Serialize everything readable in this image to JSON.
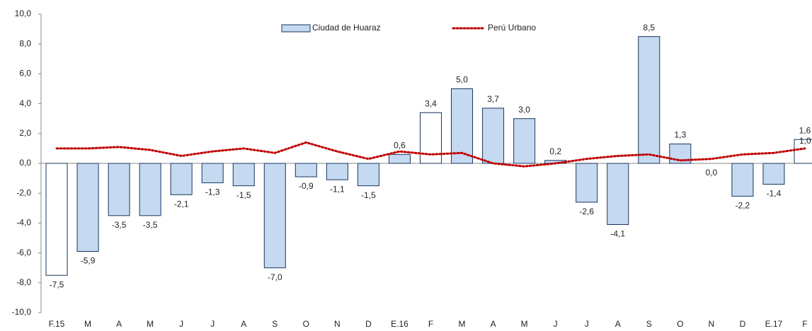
{
  "chart_data": {
    "type": "bar-line",
    "categories": [
      "F.15",
      "M",
      "A",
      "M",
      "J",
      "J",
      "A",
      "S",
      "O",
      "N",
      "D",
      "E.16",
      "F",
      "M",
      "A",
      "M",
      "J",
      "J",
      "A",
      "S",
      "O",
      "N",
      "D",
      "E.17",
      "F"
    ],
    "series": [
      {
        "name": "Ciudad de Huaraz",
        "type": "bar",
        "color": "#c5d9f1",
        "bar_fills": [
          "#ffffff",
          "#c5d9f1",
          "#c5d9f1",
          "#c5d9f1",
          "#c5d9f1",
          "#c5d9f1",
          "#c5d9f1",
          "#c5d9f1",
          "#c5d9f1",
          "#c5d9f1",
          "#c5d9f1",
          "#c5d9f1",
          "#ffffff",
          "#c5d9f1",
          "#c5d9f1",
          "#c5d9f1",
          "#c5d9f1",
          "#c5d9f1",
          "#c5d9f1",
          "#c5d9f1",
          "#c5d9f1",
          "#c5d9f1",
          "#c5d9f1",
          "#c5d9f1",
          "#ffffff"
        ],
        "values": [
          -7.5,
          -5.9,
          -3.5,
          -3.5,
          -2.1,
          -1.3,
          -1.5,
          -7.0,
          -0.9,
          -1.1,
          -1.5,
          0.6,
          3.4,
          5.0,
          3.7,
          3.0,
          0.2,
          -2.6,
          -4.1,
          8.5,
          1.3,
          0.0,
          -2.2,
          -1.4,
          1.6
        ],
        "value_labels": [
          "-7,5",
          "-5,9",
          "-3,5",
          "-3,5",
          "-2,1",
          "-1,3",
          "-1,5",
          "-7,0",
          "-0,9",
          "-1,1",
          "-1,5",
          "0,6",
          "3,4",
          "5,0",
          "3,7",
          "3,0",
          "0,2",
          "-2,6",
          "-4,1",
          "8,5",
          "1,3",
          "0,0",
          "-2,2",
          "-1,4",
          "1,6"
        ]
      },
      {
        "name": "Perú Urbano",
        "type": "line",
        "color": "#c00000",
        "values": [
          1.0,
          1.0,
          1.1,
          0.9,
          0.5,
          0.8,
          1.0,
          0.7,
          1.4,
          0.8,
          0.3,
          0.8,
          0.6,
          0.7,
          0.0,
          -0.2,
          0.0,
          0.3,
          0.5,
          0.6,
          0.2,
          0.3,
          0.6,
          0.7,
          1.0
        ],
        "value_labels": [
          null,
          null,
          null,
          null,
          null,
          null,
          null,
          null,
          null,
          null,
          null,
          null,
          null,
          null,
          null,
          null,
          null,
          null,
          null,
          null,
          null,
          null,
          null,
          null,
          "1,0"
        ]
      }
    ],
    "ylim": [
      -10,
      10
    ],
    "yticks": [
      {
        "value": -10,
        "label": "-10,0"
      },
      {
        "value": -8,
        "label": "-8,0"
      },
      {
        "value": -6,
        "label": "-6,0"
      },
      {
        "value": -4,
        "label": "-4,0"
      },
      {
        "value": -2,
        "label": "-2,0"
      },
      {
        "value": 0,
        "label": "0,0"
      },
      {
        "value": 2,
        "label": "2,0"
      },
      {
        "value": 4,
        "label": "4,0"
      },
      {
        "value": 6,
        "label": "6,0"
      },
      {
        "value": 8,
        "label": "8,0"
      },
      {
        "value": 10,
        "label": "10,0"
      }
    ],
    "grid": false,
    "legend": "top"
  }
}
